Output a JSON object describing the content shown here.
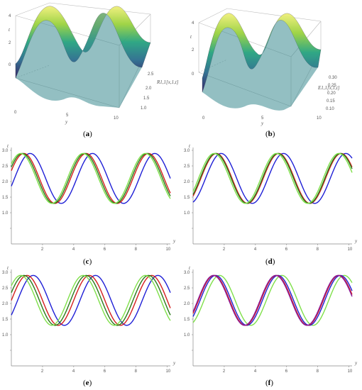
{
  "panels3d": [
    {
      "id": "a",
      "caption": "a",
      "xlabel": "y",
      "ylabel": "t",
      "zlabel": "R1,1[x,1,t]",
      "xticks": [
        "0",
        "5",
        "10"
      ],
      "yticks": [
        "0",
        "2",
        "4"
      ],
      "zticks": [
        "1.0",
        "1.5",
        "2.0",
        "2.5"
      ]
    },
    {
      "id": "b",
      "caption": "b",
      "xlabel": "y",
      "ylabel": "t",
      "zlabel": "E1,1[x,1,t]",
      "xticks": [
        "0",
        "5",
        "10"
      ],
      "yticks": [
        "0",
        "2",
        "4"
      ],
      "zticks": [
        "0.10",
        "0.15",
        "0.20",
        "0.25",
        "0.30"
      ]
    }
  ],
  "chart_data": [
    {
      "id": "c",
      "caption": "c",
      "type": "line",
      "xlabel": "y",
      "ylabel": "t",
      "xlim": [
        0,
        10.2
      ],
      "ylim": [
        0,
        3.0
      ],
      "xticks": [
        2,
        4,
        6,
        8,
        10
      ],
      "yticks": [
        0.5,
        1.0,
        1.5,
        2.0,
        2.5,
        3.0
      ],
      "series": [
        {
          "color": "#1f1fd6",
          "amp": 0.8,
          "mid": 2.1,
          "period": 4.0,
          "peak": 1.2
        },
        {
          "color": "#d41e1e",
          "amp": 0.8,
          "mid": 2.1,
          "period": 4.0,
          "peak": 0.8
        },
        {
          "color": "#2a7a1a",
          "amp": 0.8,
          "mid": 2.1,
          "period": 4.0,
          "peak": 0.7
        },
        {
          "color": "#7fe04a",
          "amp": 0.8,
          "mid": 2.1,
          "period": 4.0,
          "peak": 0.6
        }
      ]
    },
    {
      "id": "d",
      "caption": "d",
      "type": "line",
      "xlabel": "y",
      "ylabel": "t",
      "xlim": [
        0,
        10.2
      ],
      "ylim": [
        0,
        3.0
      ],
      "xticks": [
        2,
        4,
        6,
        8,
        10
      ],
      "yticks": [
        0.5,
        1.0,
        1.5,
        2.0,
        2.5,
        3.0
      ],
      "series": [
        {
          "color": "#1f1fd6",
          "amp": 0.8,
          "mid": 2.1,
          "period": 4.0,
          "peak": 1.8
        },
        {
          "color": "#d41e1e",
          "amp": 0.8,
          "mid": 2.1,
          "period": 4.0,
          "peak": 1.5
        },
        {
          "color": "#2a7a1a",
          "amp": 0.8,
          "mid": 2.1,
          "period": 4.0,
          "peak": 1.45
        },
        {
          "color": "#7fe04a",
          "amp": 0.8,
          "mid": 2.1,
          "period": 4.0,
          "peak": 1.35
        }
      ]
    },
    {
      "id": "e",
      "caption": "e",
      "type": "line",
      "xlabel": "y",
      "ylabel": "t",
      "xlim": [
        0,
        10.2
      ],
      "ylim": [
        0,
        3.0
      ],
      "xticks": [
        2,
        4,
        6,
        8,
        10
      ],
      "yticks": [
        0.5,
        1.0,
        1.5,
        2.0,
        2.5,
        3.0
      ],
      "series": [
        {
          "color": "#1f1fd6",
          "amp": 0.8,
          "mid": 2.1,
          "period": 4.0,
          "peak": 1.4
        },
        {
          "color": "#d41e1e",
          "amp": 0.8,
          "mid": 2.1,
          "period": 4.0,
          "peak": 1.0
        },
        {
          "color": "#2a7a1a",
          "amp": 0.8,
          "mid": 2.1,
          "period": 4.0,
          "peak": 0.8
        },
        {
          "color": "#7fe04a",
          "amp": 0.8,
          "mid": 2.1,
          "period": 4.0,
          "peak": 0.6
        }
      ]
    },
    {
      "id": "f",
      "caption": "f",
      "type": "line",
      "xlabel": "y",
      "ylabel": "t",
      "xlim": [
        0,
        10.2
      ],
      "ylim": [
        0,
        3.0
      ],
      "xticks": [
        2,
        4,
        6,
        8,
        10
      ],
      "yticks": [
        0.5,
        1.0,
        1.5,
        2.0,
        2.5,
        3.0
      ],
      "series": [
        {
          "color": "#7fe04a",
          "amp": 0.8,
          "mid": 2.1,
          "period": 4.0,
          "peak": 1.7
        },
        {
          "color": "#1f1fd6",
          "amp": 0.8,
          "mid": 2.1,
          "period": 4.0,
          "peak": 1.45
        },
        {
          "color": "#d41e1e",
          "amp": 0.8,
          "mid": 2.1,
          "period": 4.0,
          "peak": 1.35
        },
        {
          "color": "#8a1a9a",
          "amp": 0.8,
          "mid": 2.1,
          "period": 4.0,
          "peak": 1.3
        }
      ]
    }
  ]
}
